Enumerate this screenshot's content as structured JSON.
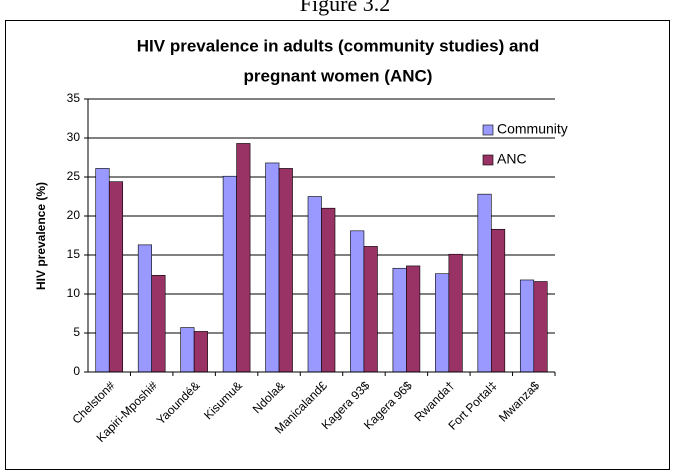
{
  "chart_data": {
    "type": "bar",
    "figure_label": "Figure 3.2",
    "title": "HIV prevalence in adults (community studies) and",
    "title_line2": "pregnant women (ANC)",
    "y_label": "HIV prevalence (%)",
    "categories": [
      "Chelston#",
      "Kapiri-Mposhi#",
      "Yaoundé&",
      "Kisumu&",
      "Ndola&",
      "Manicaland£",
      "Kagera 93$",
      "Kagera 96$",
      "Rwanda†",
      "Fort Portal‡",
      "Mwanza$"
    ],
    "series": [
      {
        "name": "Community",
        "color": "#9999ff",
        "values": [
          26.1,
          16.3,
          5.7,
          25.1,
          26.8,
          22.5,
          18.1,
          13.3,
          12.6,
          22.8,
          11.8
        ]
      },
      {
        "name": "ANC",
        "color": "#993366",
        "values": [
          24.4,
          12.4,
          5.2,
          29.3,
          26.1,
          21.0,
          16.1,
          13.6,
          15.1,
          18.3,
          11.6
        ]
      }
    ],
    "ylim": [
      0,
      35
    ],
    "yticks": [
      0,
      5,
      10,
      15,
      20,
      25,
      30,
      35
    ],
    "grid": true,
    "legend": "upper right"
  }
}
